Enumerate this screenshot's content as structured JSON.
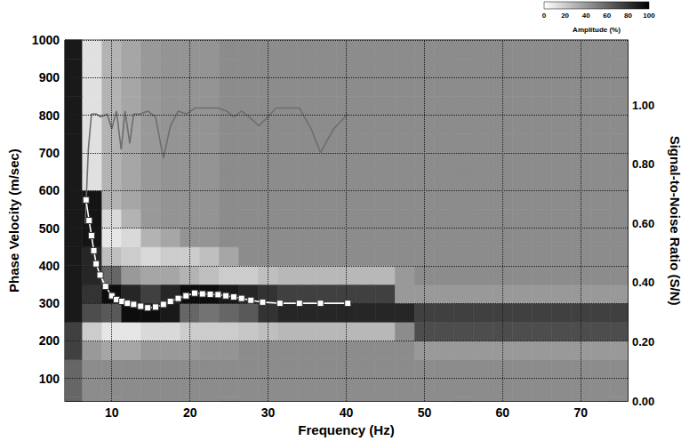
{
  "chart_data": {
    "type": "line",
    "x_label": "Frequency (Hz)",
    "y_label": "Phase Velocity (m/sec)",
    "y2_label": "Signal-to-Noise Ratio (S/N)",
    "xlim": [
      4,
      76
    ],
    "xticks": [
      10,
      20,
      30,
      40,
      50,
      60,
      70
    ],
    "ylim": [
      40,
      1000
    ],
    "yticks": [
      100,
      200,
      300,
      400,
      500,
      600,
      700,
      800,
      900,
      1000
    ],
    "y2lim": [
      0,
      1.22
    ],
    "y2ticks": [
      {
        "value": 0,
        "label": "0.00"
      },
      {
        "value": 0.2,
        "label": "0.20"
      },
      {
        "value": 0.4,
        "label": "0.40"
      },
      {
        "value": 0.6,
        "label": "0.60"
      },
      {
        "value": 0.8,
        "label": "0.80"
      },
      {
        "value": 1.0,
        "label": "1.00"
      }
    ],
    "grid": true,
    "series": [
      {
        "x": [
          6.7,
          7.1,
          7.4,
          7.7,
          8.0,
          8.5,
          9.2,
          10.0,
          10.6,
          11.3,
          12.0,
          12.8,
          13.7,
          14.6,
          15.6,
          16.6,
          17.5,
          18.5,
          19.5,
          20.6,
          21.6,
          22.6,
          23.6,
          24.6,
          25.6,
          26.6,
          27.8,
          29.3,
          31.5,
          34.0,
          36.7,
          40.2
        ],
        "values": [
          575,
          520,
          480,
          440,
          405,
          375,
          345,
          320,
          310,
          305,
          300,
          297,
          292,
          288,
          290,
          297,
          305,
          313,
          320,
          327,
          325,
          324,
          323,
          320,
          317,
          313,
          308,
          303,
          300,
          300,
          300,
          300
        ],
        "color": "#ffffff",
        "marker": "square",
        "line_style": "solid"
      },
      {
        "x": [
          6.6,
          7.0,
          7.4,
          8.0,
          8.6,
          9.4,
          10.0,
          10.6,
          11.2,
          11.7,
          12.3,
          12.8,
          13.6,
          14.6,
          15.6,
          16.6,
          17.5,
          18.5,
          19.6,
          20.6,
          21.6,
          22.6,
          23.6,
          24.7,
          25.6,
          26.6,
          27.6,
          28.8,
          30.0,
          31.0,
          32.4,
          34.0,
          35.5,
          36.7,
          38.4,
          40.2
        ],
        "values": [
          0.6,
          0.85,
          0.97,
          0.97,
          0.96,
          0.97,
          0.92,
          0.98,
          0.85,
          0.98,
          0.87,
          0.97,
          0.97,
          0.98,
          0.96,
          0.82,
          0.93,
          0.98,
          0.97,
          0.99,
          0.99,
          0.99,
          0.99,
          0.98,
          0.96,
          0.98,
          0.96,
          0.93,
          0.96,
          0.99,
          0.99,
          0.99,
          0.92,
          0.84,
          0.92,
          0.97
        ],
        "color": "#6e6e6e",
        "marker": "none",
        "line_style": "solid",
        "axis": "y2"
      }
    ],
    "amplitude": {
      "x": [
        5,
        7.5,
        10,
        12.5,
        15,
        17.5,
        20,
        22.5,
        25,
        27.5,
        30,
        32.5,
        35,
        37.5,
        40,
        42.5,
        45,
        47.5,
        50,
        52.5,
        55,
        57.5,
        60,
        62.5,
        65,
        67.5,
        70,
        72.5,
        75
      ],
      "y": [
        25,
        75,
        125,
        175,
        225,
        275,
        325,
        375,
        425,
        475,
        525,
        575,
        625,
        675,
        725,
        775,
        825,
        875,
        925,
        975
      ],
      "values": [
        [
          60,
          45,
          45,
          45,
          45,
          45,
          45,
          45,
          45,
          45,
          45,
          45,
          45,
          45,
          45,
          45,
          45,
          45,
          45,
          45,
          45,
          45,
          45,
          45,
          45,
          45,
          45,
          45,
          45
        ],
        [
          60,
          45,
          45,
          45,
          45,
          45,
          45,
          45,
          45,
          45,
          45,
          45,
          45,
          45,
          45,
          45,
          45,
          45,
          45,
          45,
          45,
          45,
          45,
          45,
          45,
          45,
          45,
          45,
          45
        ],
        [
          60,
          45,
          45,
          45,
          45,
          45,
          45,
          45,
          45,
          45,
          45,
          45,
          45,
          45,
          45,
          45,
          45,
          45,
          45,
          45,
          45,
          45,
          45,
          45,
          45,
          45,
          45,
          45,
          45
        ],
        [
          75,
          40,
          35,
          35,
          40,
          40,
          40,
          42,
          42,
          45,
          45,
          45,
          45,
          45,
          45,
          45,
          45,
          45,
          40,
          40,
          40,
          40,
          40,
          40,
          40,
          40,
          40,
          40,
          40
        ],
        [
          75,
          20,
          10,
          10,
          15,
          15,
          20,
          20,
          20,
          22,
          25,
          28,
          28,
          28,
          28,
          28,
          28,
          45,
          70,
          70,
          70,
          70,
          70,
          70,
          70,
          70,
          70,
          70,
          70
        ],
        [
          90,
          70,
          65,
          95,
          95,
          90,
          60,
          55,
          60,
          65,
          80,
          85,
          85,
          85,
          85,
          85,
          85,
          85,
          75,
          75,
          75,
          75,
          75,
          75,
          75,
          75,
          75,
          75,
          75
        ],
        [
          90,
          80,
          95,
          85,
          75,
          85,
          95,
          95,
          90,
          85,
          80,
          75,
          75,
          75,
          75,
          75,
          75,
          40,
          40,
          40,
          40,
          40,
          40,
          40,
          40,
          40,
          40,
          40,
          40
        ],
        [
          90,
          85,
          60,
          40,
          35,
          35,
          30,
          25,
          20,
          20,
          25,
          28,
          28,
          28,
          28,
          28,
          28,
          40,
          45,
          45,
          45,
          45,
          45,
          45,
          45,
          45,
          45,
          45,
          45
        ],
        [
          90,
          85,
          25,
          20,
          15,
          20,
          20,
          25,
          35,
          45,
          45,
          45,
          45,
          45,
          45,
          45,
          45,
          45,
          45,
          45,
          45,
          45,
          45,
          45,
          45,
          45,
          45,
          45,
          45
        ],
        [
          90,
          92,
          10,
          15,
          30,
          35,
          42,
          42,
          45,
          45,
          45,
          45,
          45,
          45,
          45,
          45,
          45,
          45,
          45,
          45,
          45,
          45,
          45,
          45,
          45,
          45,
          45,
          45,
          45
        ],
        [
          90,
          92,
          15,
          30,
          40,
          42,
          42,
          42,
          45,
          45,
          45,
          45,
          45,
          45,
          45,
          45,
          45,
          45,
          45,
          45,
          45,
          45,
          45,
          45,
          45,
          45,
          45,
          45,
          45
        ],
        [
          90,
          92,
          30,
          35,
          40,
          42,
          42,
          42,
          45,
          45,
          45,
          45,
          45,
          45,
          45,
          45,
          45,
          45,
          45,
          45,
          45,
          45,
          45,
          45,
          45,
          45,
          45,
          45,
          45
        ],
        [
          90,
          12,
          30,
          35,
          40,
          42,
          42,
          42,
          45,
          45,
          45,
          45,
          45,
          45,
          45,
          45,
          45,
          45,
          45,
          45,
          45,
          45,
          45,
          45,
          45,
          45,
          45,
          45,
          45
        ],
        [
          90,
          12,
          30,
          35,
          40,
          42,
          42,
          42,
          45,
          45,
          45,
          45,
          45,
          45,
          45,
          45,
          45,
          45,
          45,
          45,
          45,
          45,
          45,
          45,
          45,
          45,
          45,
          45,
          45
        ],
        [
          90,
          12,
          30,
          35,
          40,
          42,
          42,
          42,
          45,
          45,
          45,
          45,
          45,
          45,
          45,
          45,
          45,
          45,
          45,
          45,
          45,
          45,
          45,
          45,
          45,
          45,
          45,
          45,
          45
        ],
        [
          90,
          12,
          30,
          35,
          40,
          42,
          42,
          42,
          45,
          45,
          45,
          45,
          45,
          45,
          45,
          45,
          45,
          45,
          45,
          45,
          45,
          45,
          45,
          45,
          45,
          45,
          45,
          45,
          45
        ],
        [
          90,
          12,
          30,
          35,
          40,
          42,
          42,
          42,
          45,
          45,
          45,
          45,
          45,
          45,
          45,
          45,
          45,
          45,
          45,
          45,
          45,
          45,
          45,
          45,
          45,
          45,
          45,
          45,
          45
        ],
        [
          90,
          12,
          30,
          35,
          40,
          42,
          42,
          42,
          45,
          45,
          45,
          45,
          45,
          45,
          45,
          45,
          45,
          45,
          45,
          45,
          45,
          45,
          45,
          45,
          45,
          45,
          45,
          45,
          45
        ],
        [
          90,
          12,
          30,
          35,
          40,
          42,
          42,
          42,
          45,
          45,
          45,
          45,
          45,
          45,
          45,
          45,
          45,
          45,
          45,
          45,
          45,
          45,
          45,
          45,
          45,
          45,
          45,
          45,
          45
        ],
        [
          90,
          12,
          30,
          35,
          40,
          42,
          42,
          42,
          45,
          45,
          45,
          45,
          45,
          45,
          45,
          45,
          45,
          45,
          45,
          45,
          45,
          45,
          45,
          45,
          45,
          45,
          45,
          45,
          45
        ]
      ]
    },
    "colorbar": {
      "range": [
        0,
        100
      ],
      "ticks": [
        0,
        20,
        40,
        60,
        80,
        100
      ],
      "label": "Amplitude (%)"
    }
  }
}
